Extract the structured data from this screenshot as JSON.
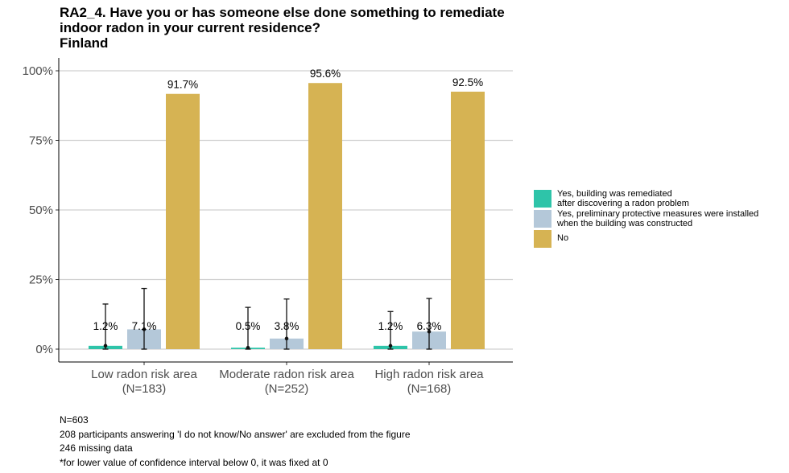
{
  "chart_data": {
    "type": "bar",
    "title": [
      "RA2_4. Have you or has someone else done something to remediate",
      "indoor radon in your current residence?",
      "Finland"
    ],
    "xlabel": "",
    "ylabel": "",
    "ylim": [
      0,
      100
    ],
    "yticks": [
      "0%",
      "25%",
      "50%",
      "75%",
      "100%"
    ],
    "ytick_values": [
      0,
      25,
      50,
      75,
      100
    ],
    "categories": [
      {
        "line1": "Low radon risk area",
        "line2": "(N=183)"
      },
      {
        "line1": "Moderate radon risk area",
        "line2": "(N=252)"
      },
      {
        "line1": "High radon risk area",
        "line2": "(N=168)"
      }
    ],
    "series": [
      {
        "name": [
          "Yes, building was remediated",
          "after discovering a radon problem"
        ],
        "color": "#2ec4a9",
        "values": [
          1.2,
          0.5,
          1.2
        ],
        "labels": [
          "1.2%",
          "0.5%",
          "1.2%"
        ],
        "ci_low": [
          0,
          0,
          0
        ],
        "ci_high": [
          16.2,
          15.0,
          13.5
        ]
      },
      {
        "name": [
          "Yes, preliminary protective measures were installed",
          "when the building was constructed"
        ],
        "color": "#b4c8d9",
        "values": [
          7.1,
          3.8,
          6.3
        ],
        "labels": [
          "7.1%",
          "3.8%",
          "6.3%"
        ],
        "ci_low": [
          0,
          0,
          0
        ],
        "ci_high": [
          21.8,
          18.0,
          18.2
        ]
      },
      {
        "name": [
          "No"
        ],
        "color": "#d6b353",
        "values": [
          91.7,
          95.6,
          92.5
        ],
        "labels": [
          "91.7%",
          "95.6%",
          "92.5%"
        ],
        "ci_low": null,
        "ci_high": null
      }
    ],
    "legend_position": "right"
  },
  "notes": [
    "N=603",
    "208 participants answering 'I do not know/No answer' are excluded from the figure",
    "246 missing data",
    "*for lower value of confidence interval below 0, it was fixed at 0"
  ]
}
